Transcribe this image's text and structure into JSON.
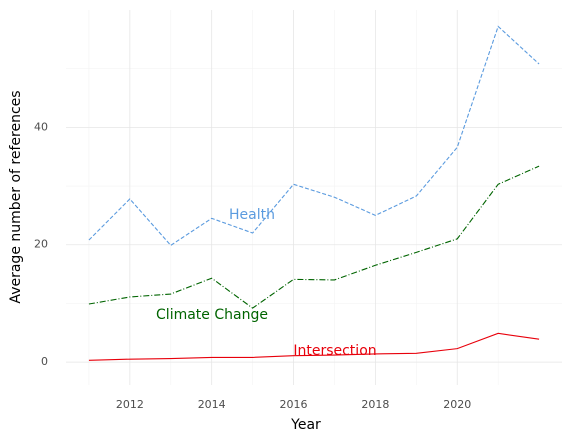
{
  "chart_data": {
    "type": "line",
    "x_label": "Year",
    "y_label": "Average number of references",
    "x": [
      2011,
      2012,
      2013,
      2014,
      2015,
      2016,
      2017,
      2018,
      2019,
      2020,
      2021,
      2022
    ],
    "series": [
      {
        "name": "Health",
        "color": "#5b9bdf",
        "dash": "dashed",
        "values": [
          20.8,
          27.8,
          19.9,
          24.5,
          22.0,
          30.3,
          28.1,
          25.0,
          28.3,
          36.6,
          57.2,
          50.8
        ]
      },
      {
        "name": "Climate Change",
        "color": "#006400",
        "dash": "dashdot",
        "values": [
          9.9,
          11.1,
          11.6,
          14.3,
          9.2,
          14.1,
          14.0,
          16.5,
          18.7,
          21.0,
          30.3,
          33.4
        ]
      },
      {
        "name": "Intersection",
        "color": "#e8000b",
        "dash": "solid",
        "values": [
          0.3,
          0.5,
          0.6,
          0.8,
          0.8,
          1.1,
          1.2,
          1.4,
          1.5,
          2.3,
          4.9,
          3.9
        ]
      }
    ],
    "xlim": [
      2010.44,
      2022.56
    ],
    "xticks": [
      2012,
      2014,
      2016,
      2018,
      2020
    ],
    "ylim": [
      -3.9,
      60
    ],
    "yticks": [
      0,
      20,
      40
    ],
    "grid": true
  }
}
